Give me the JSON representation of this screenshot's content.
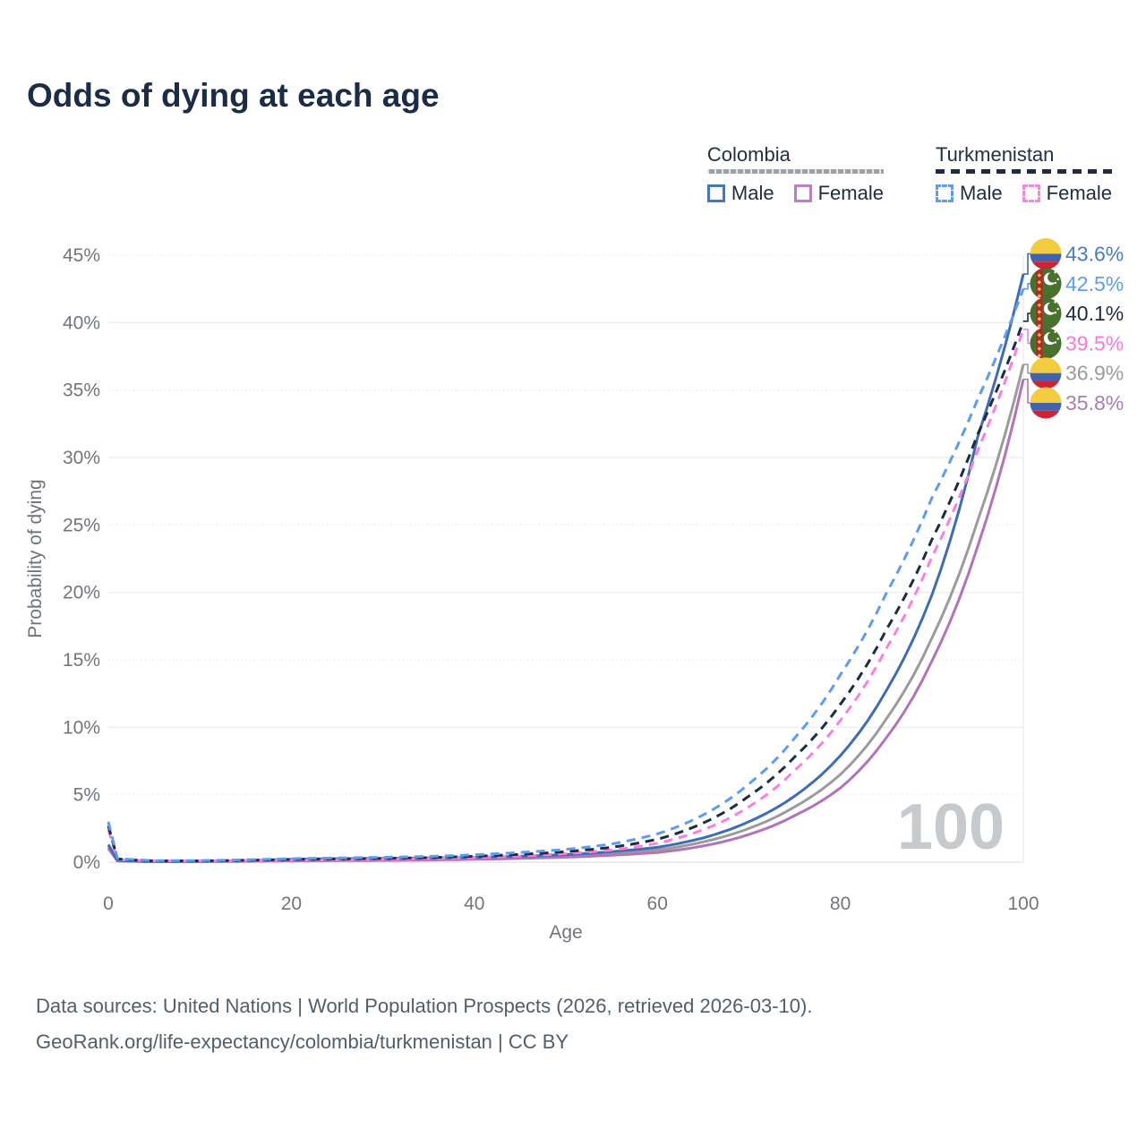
{
  "title": "Odds of dying at each age",
  "legend": {
    "groups": [
      {
        "country": "Colombia",
        "line_style": "solid",
        "underline_color": "#9aa1a8",
        "items": [
          {
            "label": "Male",
            "color": "#4577bb",
            "dashed": false
          },
          {
            "label": "Female",
            "color": "#bd7fc3",
            "dashed": false
          }
        ]
      },
      {
        "country": "Turkmenistan",
        "line_style": "dashed",
        "underline_color": "#1c2c45",
        "items": [
          {
            "label": "Male",
            "color": "#5d9cf0",
            "dashed": true
          },
          {
            "label": "Female",
            "color": "#f986dd",
            "dashed": true
          }
        ]
      }
    ]
  },
  "chart_data": {
    "type": "line",
    "title": "Odds of dying at each age",
    "xlabel": "Age",
    "ylabel": "Probability of dying",
    "xlim": [
      0,
      100
    ],
    "ylim": [
      0,
      45
    ],
    "x_ticks": [
      0,
      20,
      40,
      60,
      80,
      100
    ],
    "y_ticks": [
      {
        "pct": 0,
        "label": "0%"
      },
      {
        "pct": 5,
        "label": "5%"
      },
      {
        "pct": 10,
        "label": "10%"
      },
      {
        "pct": 15,
        "label": "15%"
      },
      {
        "pct": 20,
        "label": "20%"
      },
      {
        "pct": 25,
        "label": "25%"
      },
      {
        "pct": 30,
        "label": "30%"
      },
      {
        "pct": 35,
        "label": "35%"
      },
      {
        "pct": 40,
        "label": "40%"
      },
      {
        "pct": 45,
        "label": "45%"
      }
    ],
    "watermark": "100",
    "x": [
      0,
      1,
      5,
      10,
      15,
      20,
      25,
      30,
      35,
      40,
      45,
      50,
      55,
      60,
      65,
      70,
      75,
      80,
      85,
      90,
      95,
      100
    ],
    "series": [
      {
        "id": "colombia-all",
        "name": "Colombia",
        "color": "#9b9b9b",
        "dashed": false,
        "values": [
          1.15,
          0.1,
          0.04,
          0.05,
          0.09,
          0.15,
          0.18,
          0.2,
          0.23,
          0.28,
          0.35,
          0.45,
          0.62,
          0.9,
          1.5,
          2.5,
          4.1,
          6.5,
          10.6,
          16.6,
          25.3,
          36.9
        ],
        "end_value": 36.9,
        "end_label": "36.9%",
        "label_color": "#9b9b9b",
        "flag": "colombia"
      },
      {
        "id": "colombia-female",
        "name": "Colombia Female",
        "color": "#b273b9",
        "dashed": false,
        "values": [
          1.0,
          0.09,
          0.04,
          0.04,
          0.06,
          0.09,
          0.11,
          0.13,
          0.16,
          0.21,
          0.28,
          0.37,
          0.51,
          0.72,
          1.2,
          2.05,
          3.45,
          5.5,
          9.2,
          14.9,
          23.4,
          35.8
        ],
        "end_value": 35.8,
        "end_label": "35.8%",
        "label_color": "#a77fb0",
        "flag": "colombia"
      },
      {
        "id": "colombia-male",
        "name": "Colombia Male",
        "color": "#3e6cb5",
        "dashed": false,
        "values": [
          1.3,
          0.12,
          0.05,
          0.06,
          0.12,
          0.22,
          0.26,
          0.28,
          0.31,
          0.36,
          0.44,
          0.56,
          0.78,
          1.1,
          1.8,
          3.0,
          4.9,
          7.9,
          12.7,
          19.8,
          31.5,
          43.6
        ],
        "end_value": 43.6,
        "end_label": "43.6%",
        "label_color": "#4a7bc4",
        "flag": "colombia"
      },
      {
        "id": "turkmenistan-female",
        "name": "Turkmenistan Female",
        "color": "#fa7fdd",
        "dashed": true,
        "values": [
          2.4,
          0.2,
          0.09,
          0.09,
          0.11,
          0.15,
          0.18,
          0.21,
          0.26,
          0.34,
          0.46,
          0.63,
          0.9,
          1.4,
          2.4,
          4.1,
          6.8,
          10.5,
          15.8,
          22.6,
          30.5,
          39.5
        ],
        "end_value": 39.5,
        "end_label": "39.5%",
        "label_color": "#f879da",
        "flag": "turkmenistan"
      },
      {
        "id": "turkmenistan-all",
        "name": "Turkmenistan",
        "color": "#1e2c42",
        "dashed": true,
        "values": [
          2.7,
          0.24,
          0.1,
          0.1,
          0.14,
          0.2,
          0.24,
          0.28,
          0.34,
          0.44,
          0.58,
          0.78,
          1.1,
          1.7,
          2.9,
          4.9,
          7.8,
          11.7,
          17.2,
          23.9,
          31.7,
          40.1
        ],
        "end_value": 40.1,
        "end_label": "40.1%",
        "label_color": "#1e2a3e",
        "flag": "turkmenistan"
      },
      {
        "id": "turkmenistan-male",
        "name": "Turkmenistan Male",
        "color": "#5d9cf0",
        "dashed": true,
        "values": [
          3.0,
          0.28,
          0.12,
          0.12,
          0.18,
          0.26,
          0.31,
          0.36,
          0.43,
          0.55,
          0.72,
          0.95,
          1.35,
          2.1,
          3.5,
          5.8,
          9.2,
          13.9,
          19.9,
          27.0,
          34.3,
          42.5
        ],
        "end_value": 42.5,
        "end_label": "42.5%",
        "label_color": "#5d9cf0",
        "flag": "turkmenistan"
      }
    ],
    "flag_colors": {
      "colombia": {
        "yellow": "#f3cd3f",
        "blue": "#4262ae",
        "red": "#cf2233"
      },
      "turkmenistan": {
        "green": "#47712c",
        "red": "#b5262e",
        "ornament": "#e9c33b",
        "crescent": "#ffffff"
      }
    }
  },
  "footer": {
    "line1": "Data sources: United Nations | World Population Prospects (2026, retrieved 2026-03-10).",
    "line2": "GeoRank.org/life-expectancy/colombia/turkmenistan | CC BY"
  }
}
